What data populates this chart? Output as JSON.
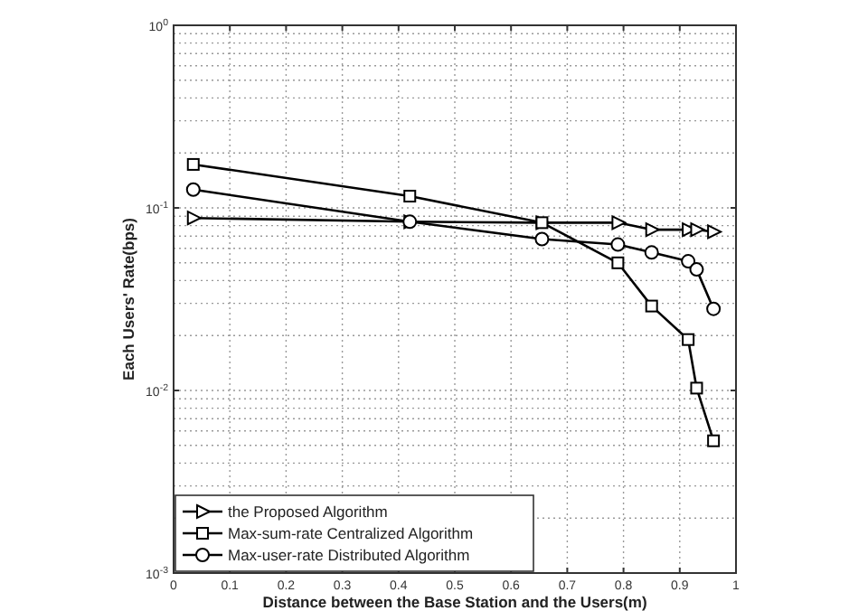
{
  "chart_data": {
    "type": "line",
    "xlabel": "Distance between the Base Station and the Users(m)",
    "ylabel": "Each Users' Rate(bps)",
    "log": "y",
    "grid": true,
    "legend": "bottom left",
    "line_style": "solid",
    "xlim": [
      0,
      1
    ],
    "xticks": [
      0,
      0.1,
      0.2,
      0.3,
      0.4,
      0.5,
      0.6,
      0.7,
      0.8,
      0.9,
      1
    ],
    "ylim": [
      0.001,
      1
    ],
    "yticks": [
      {
        "value": 0.001,
        "label": "10$^{-3}$"
      },
      {
        "value": 0.01,
        "label": "10$^{-2}$"
      },
      {
        "value": 0.1,
        "label": "10$^{-1}$"
      },
      {
        "value": 1,
        "label": "10$^{0}$"
      }
    ],
    "x": [
      0.035,
      0.42,
      0.655,
      0.79,
      0.85,
      0.915,
      0.93,
      0.96
    ],
    "series": [
      {
        "name": "the Proposed Algorithm",
        "color": "#000000",
        "marker": "triangle",
        "values": [
          0.088,
          0.084,
          0.083,
          0.083,
          0.076,
          0.076,
          0.076,
          0.074
        ]
      },
      {
        "name": "Max-sum-rate Centralized Algorithm",
        "color": "#000000",
        "marker": "square",
        "values": [
          0.173,
          0.116,
          0.083,
          0.05,
          0.029,
          0.019,
          0.0103,
          0.0053
        ]
      },
      {
        "name": "Max-user-rate Distributed Algorithm",
        "color": "#000000",
        "marker": "circle",
        "values": [
          0.126,
          0.084,
          0.0675,
          0.063,
          0.057,
          0.051,
          0.046,
          0.028
        ]
      }
    ]
  }
}
